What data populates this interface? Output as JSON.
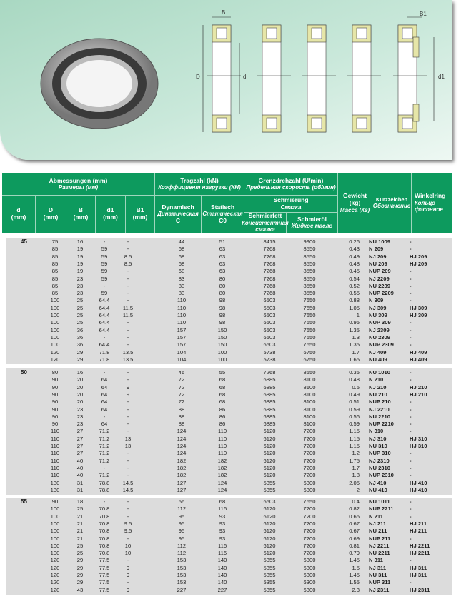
{
  "diagram": {
    "types": [
      "NU",
      "NJ",
      "NUP",
      "N",
      "HJ"
    ],
    "dims": {
      "D": "D",
      "d": "d",
      "B": "B",
      "B1": "B1",
      "d1": "d1"
    }
  },
  "header": {
    "dimensions": {
      "de": "Abmessungen (mm)",
      "ru": "Размеры (мм)"
    },
    "d": {
      "label": "d",
      "unit": "(mm)"
    },
    "D": {
      "label": "D",
      "unit": "(mm)"
    },
    "B": {
      "label": "B",
      "unit": "(mm)"
    },
    "d1": {
      "label": "d1",
      "unit": "(mm)"
    },
    "B1": {
      "label": "B1",
      "unit": "(mm)"
    },
    "load": {
      "de": "Tragzahl (kN)",
      "ru": "Коэффициент нагрузки (КН)"
    },
    "dynamic": {
      "de": "Dynamisch",
      "ru": "Динамическая",
      "sym": "C"
    },
    "static": {
      "de": "Statisch",
      "ru": "Статическая",
      "sym": "C0"
    },
    "speed": {
      "de": "Grenzdrehzahl (U/min)",
      "ru": "Предельная скорость (об/мин)"
    },
    "lubrication": {
      "de": "Schmierung",
      "ru": "Смазка"
    },
    "grease": {
      "de": "Schmierfett",
      "ru": "Консистентная смазка"
    },
    "oil": {
      "de": "Schmieröl",
      "ru": "Жидкое масло"
    },
    "weight": {
      "de": "Gewicht (kg)",
      "ru": "Масса (Кг)"
    },
    "designation": {
      "de": "Kurzzeichen",
      "ru": "Обозначение"
    },
    "ring": {
      "de": "Winkelring",
      "ru": "Кольцо фасонное"
    }
  },
  "groups": [
    {
      "d": "45",
      "rows": [
        [
          "75",
          "16",
          "-",
          "-",
          "44",
          "51",
          "8415",
          "9900",
          "0.26",
          "NU 1009",
          "-"
        ],
        [
          "85",
          "19",
          "59",
          "-",
          "68",
          "63",
          "7268",
          "8550",
          "0.43",
          "N 209",
          "-"
        ],
        [
          "85",
          "19",
          "59",
          "8.5",
          "68",
          "63",
          "7268",
          "8550",
          "0.49",
          "NJ 209",
          "HJ 209"
        ],
        [
          "85",
          "19",
          "59",
          "8.5",
          "68",
          "63",
          "7268",
          "8550",
          "0.48",
          "NU 209",
          "HJ 209"
        ],
        [
          "85",
          "19",
          "59",
          "-",
          "68",
          "63",
          "7268",
          "8550",
          "0.45",
          "NUP 209",
          "-"
        ],
        [
          "85",
          "23",
          "59",
          "-",
          "83",
          "80",
          "7268",
          "8550",
          "0.54",
          "NJ 2209",
          "-"
        ],
        [
          "85",
          "23",
          "-",
          "-",
          "83",
          "80",
          "7268",
          "8550",
          "0.52",
          "NU 2209",
          "-"
        ],
        [
          "85",
          "23",
          "59",
          "-",
          "83",
          "80",
          "7268",
          "8550",
          "0.55",
          "NUP 2209",
          "-"
        ],
        [
          "100",
          "25",
          "64.4",
          "-",
          "110",
          "98",
          "6503",
          "7650",
          "0.88",
          "N 309",
          "-"
        ],
        [
          "100",
          "25",
          "64.4",
          "11.5",
          "110",
          "98",
          "6503",
          "7650",
          "1.05",
          "NJ 309",
          "HJ 309"
        ],
        [
          "100",
          "25",
          "64.4",
          "11.5",
          "110",
          "98",
          "6503",
          "7650",
          "1",
          "NU 309",
          "HJ 309"
        ],
        [
          "100",
          "25",
          "64.4",
          "-",
          "110",
          "98",
          "6503",
          "7650",
          "0.95",
          "NUP 309",
          "-"
        ],
        [
          "100",
          "36",
          "64.4",
          "-",
          "157",
          "150",
          "6503",
          "7650",
          "1.35",
          "NJ 2309",
          "-"
        ],
        [
          "100",
          "36",
          "-",
          "-",
          "157",
          "150",
          "6503",
          "7650",
          "1.3",
          "NU 2309",
          "-"
        ],
        [
          "100",
          "36",
          "64.4",
          "-",
          "157",
          "150",
          "6503",
          "7650",
          "1.35",
          "NUP 2309",
          "-"
        ],
        [
          "120",
          "29",
          "71.8",
          "13.5",
          "104",
          "100",
          "5738",
          "6750",
          "1.7",
          "NJ 409",
          "HJ 409"
        ],
        [
          "120",
          "29",
          "71.8",
          "13.5",
          "104",
          "100",
          "5738",
          "6750",
          "1.65",
          "NU 409",
          "HJ 409"
        ]
      ]
    },
    {
      "d": "50",
      "rows": [
        [
          "80",
          "16",
          "-",
          "-",
          "46",
          "55",
          "7268",
          "8550",
          "0.35",
          "NU 1010",
          "-"
        ],
        [
          "90",
          "20",
          "64",
          "-",
          "72",
          "68",
          "6885",
          "8100",
          "0.48",
          "N 210",
          "-"
        ],
        [
          "90",
          "20",
          "64",
          "9",
          "72",
          "68",
          "6885",
          "8100",
          "0.5",
          "NJ 210",
          "HJ 210"
        ],
        [
          "90",
          "20",
          "64",
          "9",
          "72",
          "68",
          "6885",
          "8100",
          "0.49",
          "NU 210",
          "HJ 210"
        ],
        [
          "90",
          "20",
          "64",
          "-",
          "72",
          "68",
          "6885",
          "8100",
          "0.51",
          "NUP 210",
          "-"
        ],
        [
          "90",
          "23",
          "64",
          "-",
          "88",
          "86",
          "6885",
          "8100",
          "0.59",
          "NJ 2210",
          "-"
        ],
        [
          "90",
          "23",
          "-",
          "-",
          "88",
          "86",
          "6885",
          "8100",
          "0.56",
          "NU 2210",
          "-"
        ],
        [
          "90",
          "23",
          "64",
          "-",
          "88",
          "86",
          "6885",
          "8100",
          "0.59",
          "NUP 2210",
          "-"
        ],
        [
          "110",
          "27",
          "71.2",
          "-",
          "124",
          "110",
          "6120",
          "7200",
          "1.15",
          "N 310",
          "-"
        ],
        [
          "110",
          "27",
          "71.2",
          "13",
          "124",
          "110",
          "6120",
          "7200",
          "1.15",
          "NJ 310",
          "HJ 310"
        ],
        [
          "110",
          "27",
          "71.2",
          "13",
          "124",
          "110",
          "6120",
          "7200",
          "1.15",
          "NU 310",
          "HJ 310"
        ],
        [
          "110",
          "27",
          "71.2",
          "-",
          "124",
          "110",
          "6120",
          "7200",
          "1.2",
          "NUP 310",
          "-"
        ],
        [
          "110",
          "40",
          "71.2",
          "-",
          "182",
          "182",
          "6120",
          "7200",
          "1.75",
          "NJ 2310",
          "-"
        ],
        [
          "110",
          "40",
          "-",
          "-",
          "182",
          "182",
          "6120",
          "7200",
          "1.7",
          "NU 2310",
          "-"
        ],
        [
          "110",
          "40",
          "71.2",
          "-",
          "182",
          "182",
          "6120",
          "7200",
          "1.8",
          "NUP 2310",
          "-"
        ],
        [
          "130",
          "31",
          "78.8",
          "14.5",
          "127",
          "124",
          "5355",
          "6300",
          "2.05",
          "NJ 410",
          "HJ 410"
        ],
        [
          "130",
          "31",
          "78.8",
          "14.5",
          "127",
          "124",
          "5355",
          "6300",
          "2",
          "NU 410",
          "HJ 410"
        ]
      ]
    },
    {
      "d": "55",
      "rows": [
        [
          "90",
          "18",
          "-",
          "-",
          "56",
          "68",
          "6503",
          "7650",
          "0.4",
          "NU 1011",
          "-"
        ],
        [
          "100",
          "25",
          "70.8",
          "-",
          "112",
          "116",
          "6120",
          "7200",
          "0.82",
          "NUP 2211",
          "-"
        ],
        [
          "100",
          "21",
          "70.8",
          "-",
          "95",
          "93",
          "6120",
          "7200",
          "0.66",
          "N 211",
          "-"
        ],
        [
          "100",
          "21",
          "70.8",
          "9.5",
          "95",
          "93",
          "6120",
          "7200",
          "0.67",
          "NJ 211",
          "HJ 211"
        ],
        [
          "100",
          "21",
          "70.8",
          "9.5",
          "95",
          "93",
          "6120",
          "7200",
          "0.67",
          "NU 211",
          "HJ 211"
        ],
        [
          "100",
          "21",
          "70.8",
          "-",
          "95",
          "93",
          "6120",
          "7200",
          "0.69",
          "NUP 211",
          "-"
        ],
        [
          "100",
          "25",
          "70.8",
          "10",
          "112",
          "116",
          "6120",
          "7200",
          "0.81",
          "NJ 2211",
          "HJ 2211"
        ],
        [
          "100",
          "25",
          "70.8",
          "10",
          "112",
          "116",
          "6120",
          "7200",
          "0.79",
          "NU 2211",
          "HJ 2211"
        ],
        [
          "120",
          "29",
          "77.5",
          "-",
          "153",
          "140",
          "5355",
          "6300",
          "1.45",
          "N 311",
          "-"
        ],
        [
          "120",
          "29",
          "77.5",
          "9",
          "153",
          "140",
          "5355",
          "6300",
          "1.5",
          "NJ 311",
          "HJ 311"
        ],
        [
          "120",
          "29",
          "77.5",
          "9",
          "153",
          "140",
          "5355",
          "6300",
          "1.45",
          "NU 311",
          "HJ 311"
        ],
        [
          "120",
          "29",
          "77.5",
          "-",
          "153",
          "140",
          "5355",
          "6300",
          "1.55",
          "NUP 311",
          "-"
        ],
        [
          "120",
          "43",
          "77.5",
          "9",
          "227",
          "227",
          "5355",
          "6300",
          "2.3",
          "NJ 2311",
          "HJ 2311"
        ]
      ]
    }
  ]
}
